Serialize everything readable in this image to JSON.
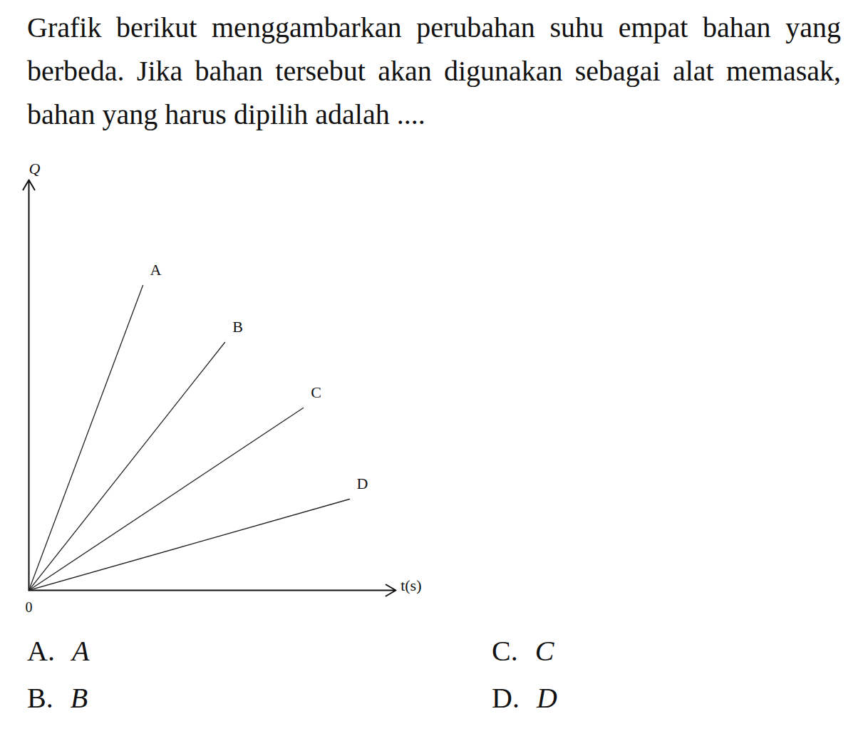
{
  "question": "Grafik berikut menggambarkan perubahan suhu empat bahan yang berbeda. Jika bahan tersebut akan digunakan sebagai alat memasak, bahan yang harus dipilih adalah ....",
  "options": [
    {
      "letter": "A.",
      "text": "A"
    },
    {
      "letter": "B.",
      "text": "B"
    },
    {
      "letter": "C.",
      "text": "C"
    },
    {
      "letter": "D.",
      "text": "D"
    }
  ],
  "chart_data": {
    "type": "line",
    "x_label": "t(s)",
    "y_label": "Q",
    "xlim": [
      0,
      515
    ],
    "ylim": [
      0,
      576
    ],
    "xticks": [
      0
    ],
    "tick_labels": "x",
    "series": [
      {
        "name": "A",
        "color": "#222222",
        "x": [
          0,
          160
        ],
        "values": [
          0,
          428
        ]
      },
      {
        "name": "B",
        "color": "#222222",
        "x": [
          0,
          275
        ],
        "values": [
          0,
          348
        ]
      },
      {
        "name": "C",
        "color": "#222222",
        "x": [
          0,
          385
        ],
        "values": [
          0,
          256
        ]
      },
      {
        "name": "D",
        "color": "#222222",
        "x": [
          0,
          450
        ],
        "values": [
          0,
          128
        ]
      }
    ]
  }
}
